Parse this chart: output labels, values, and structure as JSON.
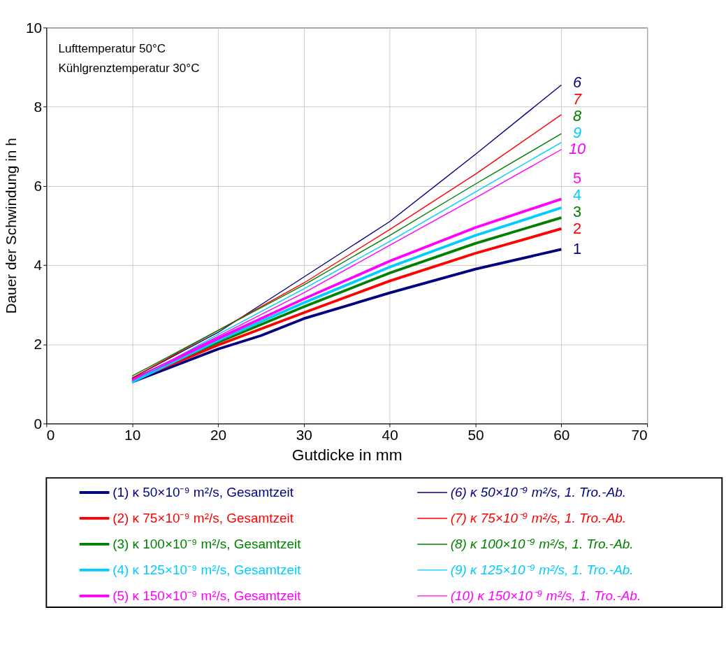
{
  "chart_data": {
    "type": "line",
    "xlabel": "Gutdicke in mm",
    "ylabel": "Dauer der Schwindung in h",
    "x": [
      10,
      20,
      30,
      40,
      50,
      60
    ],
    "xlim": [
      0,
      70
    ],
    "xticks": [
      0,
      10,
      20,
      30,
      40,
      50,
      60,
      70
    ],
    "ylim": [
      0,
      10
    ],
    "yticks": [
      0,
      2,
      4,
      6,
      8,
      10
    ],
    "grid": true,
    "legend": "bottom",
    "line_style": "solid",
    "marker": "none",
    "series": [
      {
        "name": "(1) κ 50×10⁻⁹ m²/s, Gesamtzeit",
        "color": "#000080",
        "x": [
          10,
          20,
          25,
          30,
          40,
          50,
          60
        ],
        "values": [
          1.05,
          1.88,
          2.22,
          2.65,
          3.3,
          3.9,
          4.4
        ]
      },
      {
        "name": "(2) κ  75×10⁻⁹ m²/s, Gesamtzeit",
        "color": "#ff0000",
        "values": [
          1.08,
          1.98,
          2.8,
          3.6,
          4.3,
          4.92
        ]
      },
      {
        "name": "(3) κ 100×10⁻⁹ m²/s, Gesamtzeit",
        "color": "#008000",
        "values": [
          1.12,
          2.05,
          2.95,
          3.8,
          4.55,
          5.2
        ]
      },
      {
        "name": "(4) κ 125×10⁻⁹ m²/s, Gesamtzeit",
        "color": "#00ccff",
        "values": [
          1.05,
          2.1,
          3.05,
          3.95,
          4.75,
          5.45
        ]
      },
      {
        "name": "(5) κ 150×10⁻⁹ m²/s, Gesamtzeit",
        "color": "#ff00ff",
        "values": [
          1.1,
          2.15,
          3.15,
          4.1,
          4.95,
          5.67
        ]
      },
      {
        "name": "(6)  κ   50×10⁻⁹ m²/s, 1. Tro.-Ab.",
        "color": "#000080",
        "values": [
          1.15,
          2.3,
          3.7,
          5.1,
          6.8,
          8.55
        ]
      },
      {
        "name": "(7)  κ   75×10⁻⁹ m²/s, 1. Tro.-Ab.",
        "color": "#ff0000",
        "values": [
          1.15,
          2.35,
          3.55,
          4.9,
          6.3,
          7.8
        ]
      },
      {
        "name": "(8)  κ   100×10⁻⁹ m²/s, 1. Tro.-Ab.",
        "color": "#008000",
        "values": [
          1.2,
          2.35,
          3.5,
          4.75,
          6.05,
          7.32
        ]
      },
      {
        "name": "(9)  κ   125×10⁻⁹ m²/s, 1. Tro.-Ab.",
        "color": "#00ccff",
        "values": [
          1.05,
          2.25,
          3.4,
          4.6,
          5.85,
          7.1
        ]
      },
      {
        "name": "(10)  κ   150×10⁻⁹ m²/s, 1. Tro.-Ab.",
        "color": "#ff00ff",
        "values": [
          1.1,
          2.2,
          3.3,
          4.5,
          5.7,
          6.92
        ]
      }
    ],
    "annotations": [
      "1",
      "2",
      "3",
      "4",
      "5",
      "6",
      "7",
      "8",
      "9",
      "10",
      "Lufttemperatur 50°C",
      "Kühlgrenztemperatur 30°C"
    ]
  }
}
